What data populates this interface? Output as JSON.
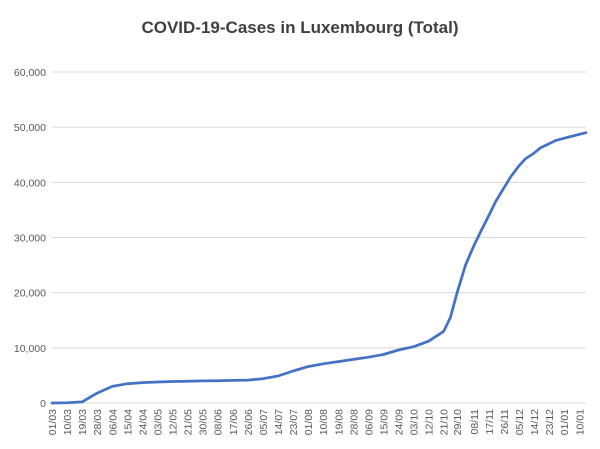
{
  "chart_data": {
    "type": "line",
    "title": "COVID-19-Cases in Luxembourg (Total)",
    "xlabel": "",
    "ylabel": "",
    "ylim": [
      0,
      60000
    ],
    "y_ticks": [
      0,
      10000,
      20000,
      30000,
      40000,
      50000,
      60000
    ],
    "y_tick_labels": [
      "0",
      "10,000",
      "20,000",
      "30,000",
      "40,000",
      "50,000",
      "60,000"
    ],
    "x_tick_labels": [
      "01/03",
      "10/03",
      "19/03",
      "28/03",
      "06/04",
      "15/04",
      "24/04",
      "03/05",
      "12/05",
      "21/05",
      "30/05",
      "08/06",
      "17/06",
      "26/06",
      "05/07",
      "14/07",
      "23/07",
      "01/08",
      "10/08",
      "19/08",
      "28/08",
      "06/09",
      "15/09",
      "24/09",
      "03/10",
      "12/10",
      "21/10",
      "29/10",
      "08/11",
      "17/11",
      "26/11",
      "05/12",
      "14/12",
      "23/12",
      "01/01",
      "10/01"
    ],
    "grid": true,
    "legend": "none",
    "colors": {
      "line": "#4472c4",
      "grid": "#d9d9d9",
      "title": "#404040",
      "ticks": "#595959"
    },
    "series": [
      {
        "x": [
          "01/03",
          "10/03",
          "19/03",
          "28/03",
          "06/04",
          "15/04",
          "24/04",
          "03/05",
          "12/05",
          "21/05",
          "30/05",
          "08/06",
          "17/06",
          "26/06",
          "05/07",
          "14/07",
          "23/07",
          "01/08",
          "10/08",
          "19/08",
          "28/08",
          "06/09",
          "15/09",
          "24/09",
          "03/10",
          "12/10",
          "21/10",
          "25/10",
          "29/10",
          "03/11",
          "08/11",
          "12/11",
          "17/11",
          "21/11",
          "26/11",
          "30/11",
          "05/12",
          "09/12",
          "14/12",
          "18/12",
          "23/12",
          "27/12",
          "01/01",
          "05/01",
          "10/01",
          "14/01"
        ],
        "values": [
          0,
          50,
          200,
          1800,
          3000,
          3500,
          3700,
          3800,
          3900,
          3950,
          4000,
          4050,
          4100,
          4150,
          4400,
          4900,
          5800,
          6600,
          7100,
          7500,
          7900,
          8300,
          8800,
          9600,
          10200,
          11200,
          13000,
          15500,
          20000,
          25000,
          28500,
          31000,
          34000,
          36500,
          39000,
          41000,
          43000,
          44300,
          45300,
          46300,
          47000,
          47600,
          48000,
          48300,
          48700,
          49000
        ]
      }
    ]
  }
}
